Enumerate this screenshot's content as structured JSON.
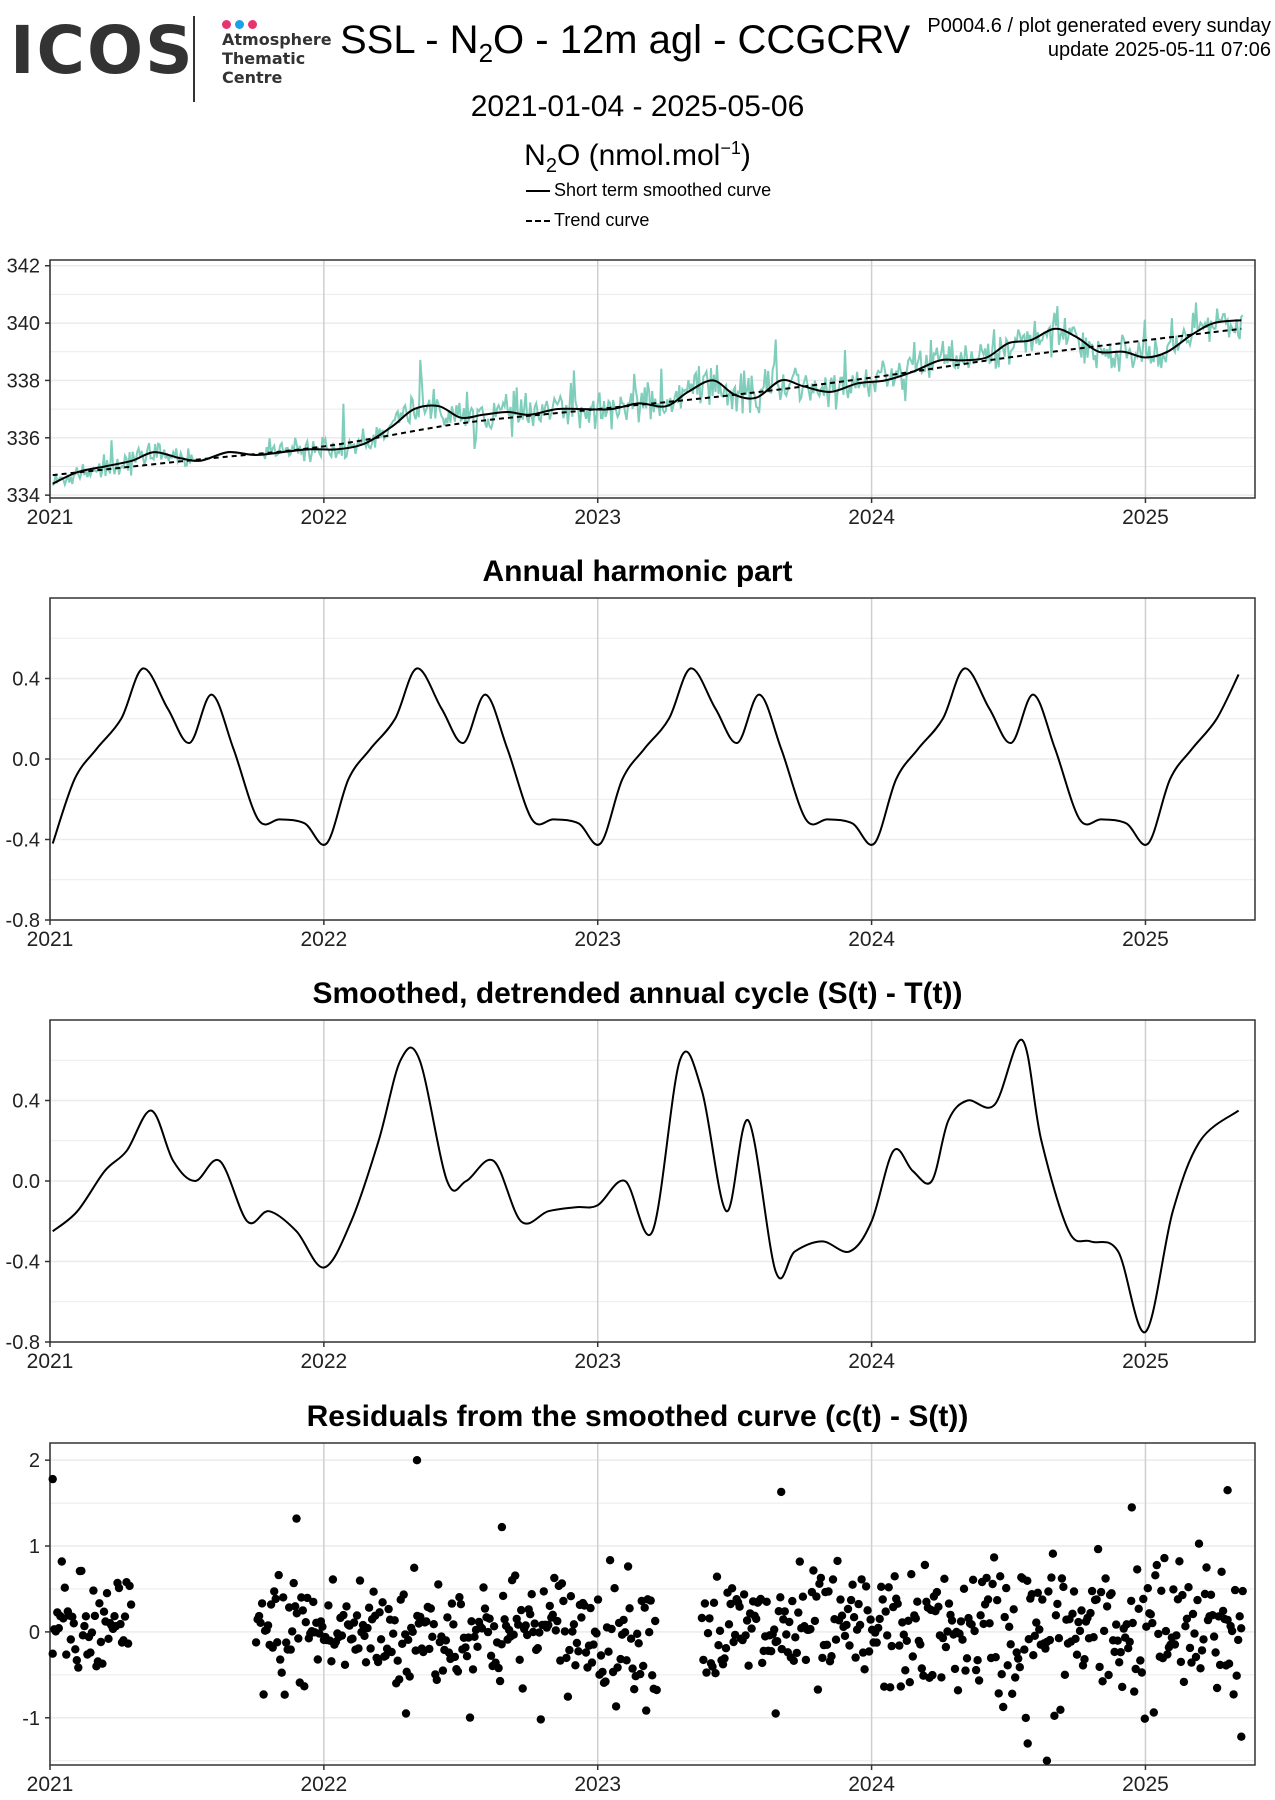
{
  "header": {
    "logo_word": "ICOS",
    "logo_lines": [
      "Atmosphere",
      "Thematic",
      "Centre"
    ],
    "logo_dot_colors": [
      "#e8336d",
      "#1aa0e6",
      "#e8336d"
    ],
    "title_pre": "SSL - N",
    "title_sub": "2",
    "title_post": "O - 12m agl - CCGCRV",
    "date_range": "2021-01-04 - 2025-05-06",
    "meta_line1": "P0004.6 / plot generated every sunday",
    "meta_line2": "update  2025-05-11 07:06",
    "ylabel_pre": "N",
    "ylabel_sub": "2",
    "ylabel_mid": "O (nmol.mol",
    "ylabel_sup": "−1",
    "ylabel_post": ")"
  },
  "legend": {
    "smooth": "Short term smoothed curve",
    "trend": "Trend curve"
  },
  "colors": {
    "observations": "#7fcdbb",
    "line": "#000000",
    "grid": "#ebebeb",
    "grid_major": "#cfcfcf"
  },
  "chart_data": [
    {
      "type": "line",
      "title": "",
      "xlabel": "",
      "ylabel": "N2O (nmol.mol-1)",
      "x_ticks": [
        "2021",
        "2022",
        "2023",
        "2024",
        "2025"
      ],
      "y_ticks": [
        "334",
        "336",
        "338",
        "340",
        "342"
      ],
      "xlim": [
        2021.0,
        2025.4
      ],
      "ylim": [
        333.9,
        342.2
      ],
      "grid": true,
      "legend_position": "top",
      "series": [
        {
          "name": "Short term smoothed curve",
          "style": "solid",
          "x": [
            2021.01,
            2021.1,
            2021.2,
            2021.3,
            2021.38,
            2021.47,
            2021.55,
            2021.65,
            2021.75,
            2021.85,
            2021.95,
            2022.05,
            2022.15,
            2022.25,
            2022.33,
            2022.42,
            2022.5,
            2022.58,
            2022.67,
            2022.75,
            2022.85,
            2022.95,
            2023.05,
            2023.15,
            2023.25,
            2023.33,
            2023.42,
            2023.5,
            2023.58,
            2023.67,
            2023.75,
            2023.85,
            2023.95,
            2024.05,
            2024.15,
            2024.25,
            2024.33,
            2024.42,
            2024.5,
            2024.58,
            2024.67,
            2024.75,
            2024.83,
            2024.92,
            2025.0,
            2025.08,
            2025.17,
            2025.25,
            2025.35
          ],
          "y": [
            334.4,
            334.8,
            335.0,
            335.2,
            335.5,
            335.3,
            335.2,
            335.5,
            335.4,
            335.5,
            335.6,
            335.6,
            335.8,
            336.4,
            337.0,
            337.1,
            336.7,
            336.8,
            336.9,
            336.8,
            337.0,
            337.0,
            337.0,
            337.2,
            337.1,
            337.6,
            338.0,
            337.5,
            337.4,
            338.0,
            337.8,
            337.6,
            337.9,
            338.0,
            338.3,
            338.7,
            338.7,
            338.8,
            339.3,
            339.4,
            339.8,
            339.5,
            339.0,
            339.0,
            338.8,
            339.0,
            339.6,
            340.0,
            340.1
          ]
        },
        {
          "name": "Trend curve",
          "style": "dashed",
          "x": [
            2021.01,
            2021.5,
            2022.0,
            2022.5,
            2023.0,
            2023.5,
            2024.0,
            2024.5,
            2025.0,
            2025.35
          ],
          "y": [
            334.7,
            335.2,
            335.7,
            336.5,
            337.0,
            337.5,
            338.1,
            338.8,
            339.4,
            339.8
          ]
        }
      ]
    },
    {
      "type": "line",
      "title": "Annual harmonic part",
      "xlabel": "",
      "ylabel": "",
      "x_ticks": [
        "2021",
        "2022",
        "2023",
        "2024",
        "2025"
      ],
      "y_ticks": [
        "-0.8",
        "-0.4",
        "0.0",
        "0.4"
      ],
      "xlim": [
        2021.0,
        2025.4
      ],
      "ylim": [
        -0.8,
        0.8
      ],
      "grid": true,
      "series": [
        {
          "x_offsets": [
            0.0,
            0.08,
            0.16,
            0.25,
            0.33,
            0.42,
            0.5,
            0.58,
            0.66,
            0.75,
            0.83,
            0.92,
            1.0
          ],
          "y_pattern": [
            -0.42,
            -0.1,
            0.05,
            0.2,
            0.45,
            0.25,
            0.08,
            0.32,
            0.05,
            -0.3,
            -0.3,
            -0.32,
            -0.42
          ],
          "x": [
            2021.01,
            2021.09,
            2021.17,
            2021.26,
            2021.34,
            2021.43,
            2021.51,
            2021.59,
            2021.67,
            2021.76,
            2021.84,
            2021.93,
            2022.01,
            2022.09,
            2022.17,
            2022.26,
            2022.34,
            2022.43,
            2022.51,
            2022.59,
            2022.67,
            2022.76,
            2022.84,
            2022.93,
            2023.01,
            2023.09,
            2023.17,
            2023.26,
            2023.34,
            2023.43,
            2023.51,
            2023.59,
            2023.67,
            2023.76,
            2023.84,
            2023.93,
            2024.01,
            2024.09,
            2024.17,
            2024.26,
            2024.34,
            2024.43,
            2024.51,
            2024.59,
            2024.67,
            2024.76,
            2024.84,
            2024.93,
            2025.01,
            2025.09,
            2025.17,
            2025.26,
            2025.34
          ],
          "y": [
            -0.42,
            -0.1,
            0.05,
            0.2,
            0.45,
            0.25,
            0.08,
            0.32,
            0.05,
            -0.3,
            -0.3,
            -0.32,
            -0.42,
            -0.1,
            0.05,
            0.2,
            0.45,
            0.25,
            0.08,
            0.32,
            0.05,
            -0.3,
            -0.3,
            -0.32,
            -0.42,
            -0.1,
            0.05,
            0.2,
            0.45,
            0.25,
            0.08,
            0.32,
            0.05,
            -0.3,
            -0.3,
            -0.32,
            -0.42,
            -0.1,
            0.05,
            0.2,
            0.45,
            0.25,
            0.08,
            0.32,
            0.05,
            -0.3,
            -0.3,
            -0.32,
            -0.42,
            -0.1,
            0.05,
            0.2,
            0.42
          ]
        }
      ]
    },
    {
      "type": "line",
      "title": "Smoothed, detrended annual cycle (S(t) - T(t))",
      "xlabel": "",
      "ylabel": "",
      "x_ticks": [
        "2021",
        "2022",
        "2023",
        "2024",
        "2025"
      ],
      "y_ticks": [
        "-0.8",
        "-0.4",
        "0.0",
        "0.4"
      ],
      "xlim": [
        2021.0,
        2025.4
      ],
      "ylim": [
        -0.8,
        0.8
      ],
      "grid": true,
      "series": [
        {
          "x": [
            2021.01,
            2021.1,
            2021.2,
            2021.28,
            2021.37,
            2021.45,
            2021.53,
            2021.62,
            2021.72,
            2021.8,
            2021.9,
            2022.0,
            2022.1,
            2022.2,
            2022.28,
            2022.35,
            2022.45,
            2022.52,
            2022.62,
            2022.72,
            2022.82,
            2022.92,
            2023.0,
            2023.1,
            2023.2,
            2023.3,
            2023.38,
            2023.47,
            2023.55,
            2023.65,
            2023.72,
            2023.82,
            2023.92,
            2024.0,
            2024.08,
            2024.15,
            2024.22,
            2024.28,
            2024.35,
            2024.45,
            2024.55,
            2024.62,
            2024.72,
            2024.8,
            2024.9,
            2025.0,
            2025.1,
            2025.2,
            2025.34
          ],
          "y": [
            -0.25,
            -0.15,
            0.05,
            0.15,
            0.35,
            0.1,
            0.0,
            0.1,
            -0.2,
            -0.15,
            -0.25,
            -0.43,
            -0.2,
            0.2,
            0.6,
            0.6,
            0.0,
            0.0,
            0.1,
            -0.2,
            -0.15,
            -0.13,
            -0.12,
            0.0,
            -0.25,
            0.6,
            0.45,
            -0.15,
            0.3,
            -0.45,
            -0.35,
            -0.3,
            -0.35,
            -0.2,
            0.15,
            0.05,
            0.0,
            0.3,
            0.4,
            0.38,
            0.7,
            0.2,
            -0.25,
            -0.3,
            -0.35,
            -0.75,
            -0.15,
            0.2,
            0.35
          ]
        }
      ]
    },
    {
      "type": "scatter",
      "title": "Residuals from the smoothed curve (c(t) - S(t))",
      "xlabel": "",
      "ylabel": "",
      "x_ticks": [
        "2021",
        "2022",
        "2023",
        "2024",
        "2025"
      ],
      "y_ticks": [
        "-1",
        "0",
        "1",
        "2"
      ],
      "xlim": [
        2021.0,
        2025.4
      ],
      "ylim": [
        -1.55,
        2.2
      ],
      "grid": true,
      "gap_without_data": [
        2021.3,
        2021.75
      ],
      "notable_points": [
        {
          "x": 2021.01,
          "y": 1.78
        },
        {
          "x": 2022.34,
          "y": 2.0
        },
        {
          "x": 2023.67,
          "y": 1.63
        },
        {
          "x": 2025.3,
          "y": 1.65
        },
        {
          "x": 2024.64,
          "y": -1.5
        },
        {
          "x": 2024.57,
          "y": -1.3
        },
        {
          "x": 2025.35,
          "y": -1.22
        },
        {
          "x": 2022.3,
          "y": -0.95
        },
        {
          "x": 2023.65,
          "y": -0.95
        },
        {
          "x": 2021.9,
          "y": 1.32
        },
        {
          "x": 2022.65,
          "y": 1.22
        },
        {
          "x": 2024.95,
          "y": 1.45
        }
      ],
      "y_distribution": {
        "mean": 0.0,
        "typical_spread": 0.35
      }
    }
  ]
}
